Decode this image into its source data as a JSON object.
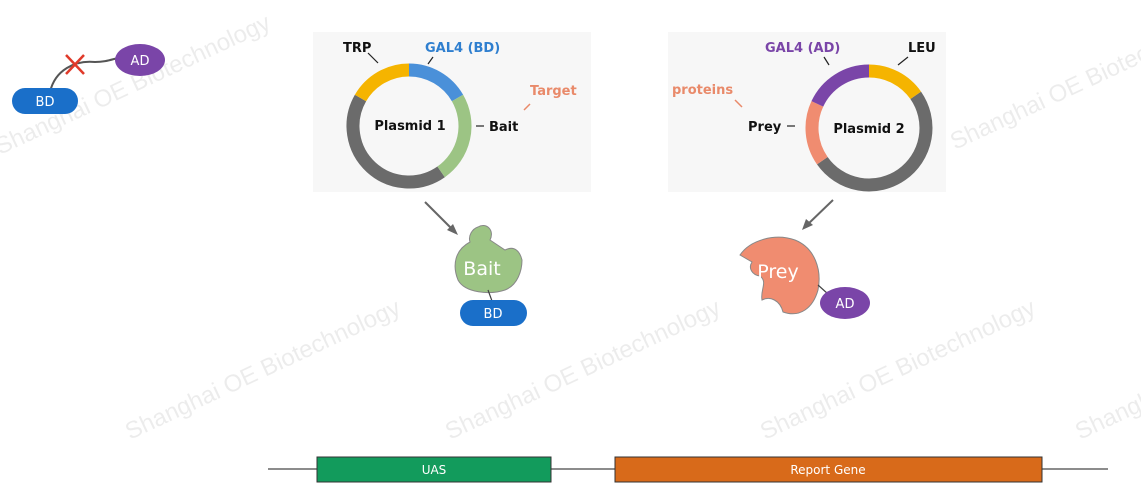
{
  "watermark": "Shanghai OE Biotechnology",
  "top_left": {
    "bd_label": "BD",
    "ad_label": "AD"
  },
  "plasmid1": {
    "name": "Plasmid 1",
    "labels": {
      "trp": "TRP",
      "gal4": "GAL4 (BD)",
      "bait": "Bait",
      "target": "Target"
    },
    "protein_label": "Bait",
    "domain_label": "BD"
  },
  "plasmid2": {
    "name": "Plasmid 2",
    "labels": {
      "gal4": "GAL4 (AD)",
      "leu": "LEU",
      "prey": "Prey",
      "proteins": "proteins"
    },
    "protein_label": "Prey",
    "domain_label": "AD"
  },
  "gene": {
    "uas": "UAS",
    "report": "Report Gene"
  },
  "colors": {
    "bd_blue": "#1a6fc9",
    "ad_purple": "#7a45a8",
    "trp_yellow": "#f5b400",
    "gal4_bd_blue": "#4a90d9",
    "bait_green": "#9cc484",
    "backbone_gray": "#6b6b6b",
    "prey_salmon": "#f08c70",
    "uas_green": "#129b5c",
    "report_orange": "#d86a1a"
  }
}
